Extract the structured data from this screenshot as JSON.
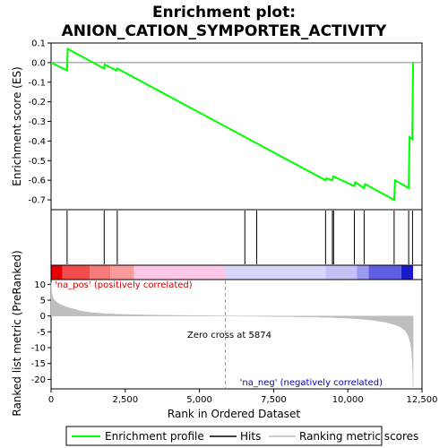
{
  "chart_data": [
    {
      "type": "line",
      "title_line1": "Enrichment plot:",
      "title_line2": "ANION_CATION_SYMPORTER_ACTIVITY",
      "ylabel": "Enrichment score (ES)",
      "xlim": [
        0,
        12500
      ],
      "ylim": [
        -0.75,
        0.1
      ],
      "yticks": [
        -0.7,
        -0.6,
        -0.5,
        -0.4,
        -0.3,
        -0.2,
        -0.1,
        0.0,
        0.1
      ],
      "ytick_labels": [
        "-0.7",
        "-0.6",
        "-0.5",
        "-0.4",
        "-0.3",
        "-0.2",
        "-0.1",
        "0.0",
        "0.1"
      ],
      "grid": false,
      "series": [
        {
          "name": "Enrichment profile",
          "color": "#00ff00",
          "x": [
            0,
            540,
            560,
            1790,
            1810,
            2200,
            2230,
            9250,
            9280,
            9480,
            9510,
            10220,
            10250,
            10550,
            10580,
            11560,
            11590,
            12050,
            12080,
            12170,
            12200
          ],
          "y": [
            0.0,
            -0.04,
            0.07,
            -0.03,
            -0.01,
            -0.04,
            -0.03,
            -0.6,
            -0.59,
            -0.6,
            -0.58,
            -0.63,
            -0.61,
            -0.64,
            -0.62,
            -0.7,
            -0.6,
            -0.64,
            -0.38,
            -0.39,
            0.0
          ]
        }
      ]
    },
    {
      "type": "hits",
      "xlim": [
        0,
        12500
      ],
      "hits": [
        540,
        1790,
        2230,
        6530,
        6930,
        9250,
        9480,
        9520,
        10220,
        10550,
        11560,
        12050,
        12180
      ]
    },
    {
      "type": "color-bar",
      "xlim": [
        0,
        12500
      ],
      "segments": [
        {
          "from": 0,
          "to": 380,
          "color": "#e60000"
        },
        {
          "from": 380,
          "to": 1300,
          "color": "#f44d4d"
        },
        {
          "from": 1300,
          "to": 2000,
          "color": "#f77a7a"
        },
        {
          "from": 2000,
          "to": 2800,
          "color": "#fa9c9c"
        },
        {
          "from": 2800,
          "to": 5874,
          "color": "#fcc6e6"
        },
        {
          "from": 5874,
          "to": 9250,
          "color": "#d6d6fa"
        },
        {
          "from": 9250,
          "to": 10300,
          "color": "#c2c2f5"
        },
        {
          "from": 10300,
          "to": 10700,
          "color": "#9a9aef"
        },
        {
          "from": 10700,
          "to": 11800,
          "color": "#5e5ee0"
        },
        {
          "from": 11800,
          "to": 12200,
          "color": "#1a1ac8"
        }
      ]
    },
    {
      "type": "area",
      "xlabel": "Rank in Ordered Dataset",
      "ylabel": "Ranked list metric (PreRanked)",
      "xlim": [
        0,
        12500
      ],
      "ylim": [
        -23,
        11.5
      ],
      "xticks": [
        0,
        2500,
        5000,
        7500,
        10000,
        12500
      ],
      "xtick_labels": [
        "0",
        "2,500",
        "5,000",
        "7,500",
        "10,000",
        "12,500"
      ],
      "yticks": [
        -20,
        -15,
        -10,
        -5,
        0,
        5,
        10
      ],
      "ytick_labels": [
        "-20",
        "-15",
        "-10",
        "-5",
        "0",
        "5",
        "10"
      ],
      "zero_cross": 5874,
      "annotations": {
        "pos_label": "'na_pos' (positively correlated)",
        "neg_label": "'na_neg' (negatively correlated)",
        "zero_label": "Zero cross at 5874"
      },
      "pos_label_color": "#cc0000",
      "neg_label_color": "#0000cc",
      "series": [
        {
          "name": "Ranking metric scores",
          "color": "#bebebe",
          "x": [
            0,
            20,
            60,
            120,
            200,
            300,
            450,
            600,
            800,
            1000,
            1300,
            1700,
            2200,
            3000,
            4000,
            5000,
            5874,
            7000,
            8000,
            9000,
            9800,
            10400,
            10900,
            11300,
            11600,
            11800,
            11950,
            12050,
            12110,
            12150,
            12170,
            12190,
            12200
          ],
          "y": [
            10.5,
            7.5,
            5.8,
            5.0,
            4.3,
            3.7,
            3.1,
            2.6,
            2.1,
            1.6,
            1.1,
            0.8,
            0.55,
            0.35,
            0.2,
            0.1,
            0.0,
            -0.1,
            -0.2,
            -0.35,
            -0.6,
            -0.9,
            -1.4,
            -2.0,
            -2.8,
            -3.6,
            -4.8,
            -6.5,
            -8.5,
            -11.0,
            -14.0,
            -18.0,
            -22.5
          ]
        }
      ]
    }
  ],
  "legend": {
    "items": [
      {
        "label": "Enrichment profile",
        "color": "#00ff00"
      },
      {
        "label": "Hits",
        "color": "#000000"
      },
      {
        "label": "Ranking metric scores",
        "color": "#bebebe"
      }
    ]
  }
}
